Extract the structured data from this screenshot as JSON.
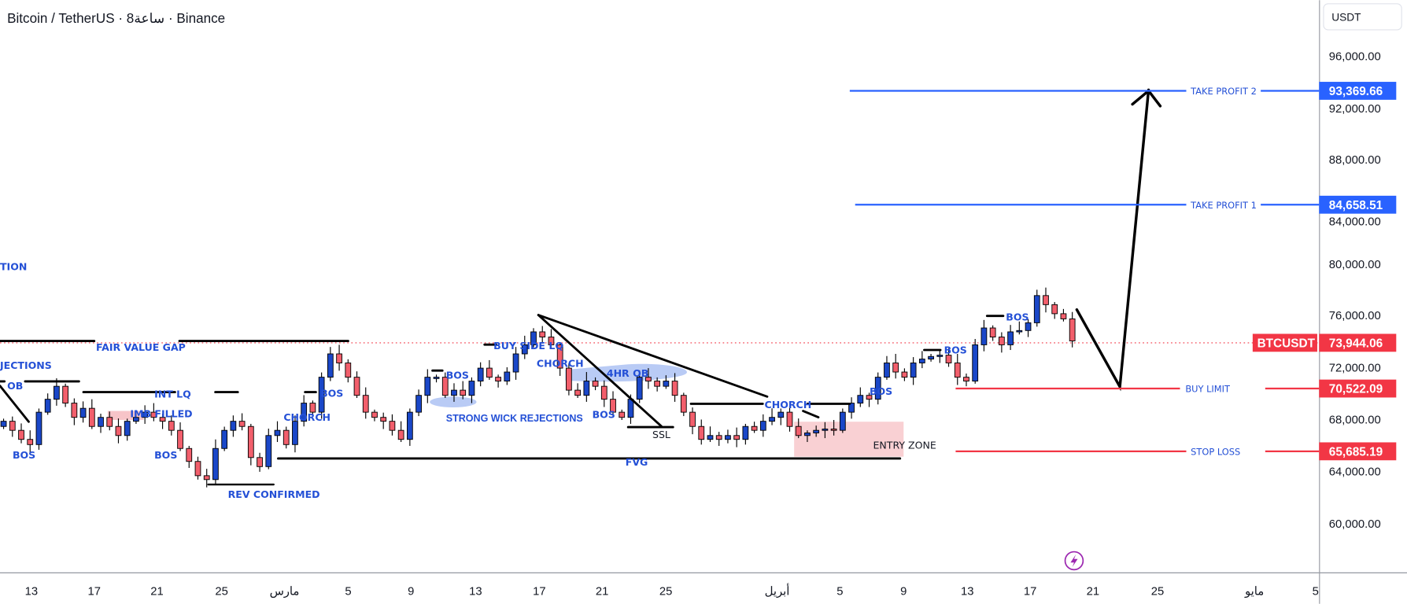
{
  "header": {
    "title": "Bitcoin / TetherUS · 8ساعة · Binance"
  },
  "currency_button": "USDT",
  "colors": {
    "up": "#1a47c8",
    "down": "#f25f6c",
    "label": "#2450d6",
    "tp": "#2962ff",
    "sl": "#f23645",
    "purple": "#9c27b0"
  },
  "price_axis": [
    "96,000.00",
    "92,000.00",
    "88,000.00",
    "84,000.00",
    "80,000.00",
    "76,000.00",
    "72,000.00",
    "68,000.00",
    "64,000.00",
    "60,000.00"
  ],
  "time_axis": [
    "13",
    "17",
    "21",
    "25",
    "مارس",
    "5",
    "9",
    "13",
    "17",
    "21",
    "25",
    "أبريل",
    "5",
    "9",
    "13",
    "17",
    "21",
    "25",
    "مايو",
    "5"
  ],
  "levels": {
    "tp2": {
      "label": "TAKE PROFIT 2",
      "price": "93,369.66"
    },
    "tp1": {
      "label": "TAKE PROFIT 1",
      "price": "84,658.51"
    },
    "current": {
      "symbol": "BTCUSDT",
      "price": "73,944.06"
    },
    "buy_limit": {
      "label": "BUY LIMIT",
      "price": "70,522.09"
    },
    "stop_loss": {
      "label": "STOP LOSS",
      "price": "65,685.19"
    }
  },
  "annotations": {
    "tion": "TION",
    "fvg_top": "FAIR VALUE GAP",
    "jections": "JECTIONS",
    "ob": "OB",
    "int_lq": "INT LQ",
    "imb_filled": "IMB FILLED",
    "bos": "BOS",
    "choch": "CHORCH",
    "rev_confirmed": "REV CONFIRMED",
    "buy_side_lq": "BUY SIDE LQ",
    "strong_wick": "STRONG WICK REJECTIONS",
    "ob_4hr": "4HR OB",
    "ssl": "SSL",
    "fvg": "FVG",
    "entry_zone": "ENTRY ZONE"
  },
  "candles_close_k": [
    67.8,
    67.1,
    66.4,
    66.0,
    68.5,
    69.5,
    70.5,
    69.2,
    68.1,
    68.8,
    67.4,
    68.1,
    67.4,
    66.7,
    67.8,
    68.1,
    68.5,
    68.1,
    67.8,
    67.1,
    65.7,
    64.7,
    63.6,
    63.3,
    65.7,
    67.1,
    67.8,
    67.4,
    65.0,
    64.3,
    66.7,
    67.1,
    66.0,
    67.8,
    69.2,
    68.5,
    71.2,
    73.0,
    72.3,
    71.2,
    69.8,
    68.5,
    68.1,
    67.8,
    67.1,
    66.4,
    68.5,
    69.8,
    71.2,
    71.2,
    69.8,
    70.2,
    69.8,
    70.9,
    71.9,
    71.2,
    70.9,
    71.6,
    73.0,
    73.7,
    74.7,
    74.3,
    73.7,
    71.9,
    70.2,
    69.8,
    70.9,
    70.5,
    69.5,
    68.5,
    68.1,
    69.5,
    71.2,
    70.9,
    70.5,
    70.9,
    69.8,
    68.5,
    67.4,
    66.4,
    66.7,
    66.4,
    66.7,
    66.4,
    67.4,
    67.1,
    67.8,
    68.1,
    68.5,
    67.4,
    66.7,
    66.9,
    67.1,
    67.2,
    67.1,
    68.5,
    69.2,
    69.8,
    69.5,
    71.2,
    72.3,
    71.6,
    71.2,
    72.3,
    72.6,
    72.8,
    72.9,
    72.3,
    71.2,
    70.9,
    73.7,
    75.0,
    74.3,
    73.7,
    74.7,
    74.8,
    75.4,
    77.5,
    76.8,
    76.1,
    75.7,
    74.0
  ]
}
